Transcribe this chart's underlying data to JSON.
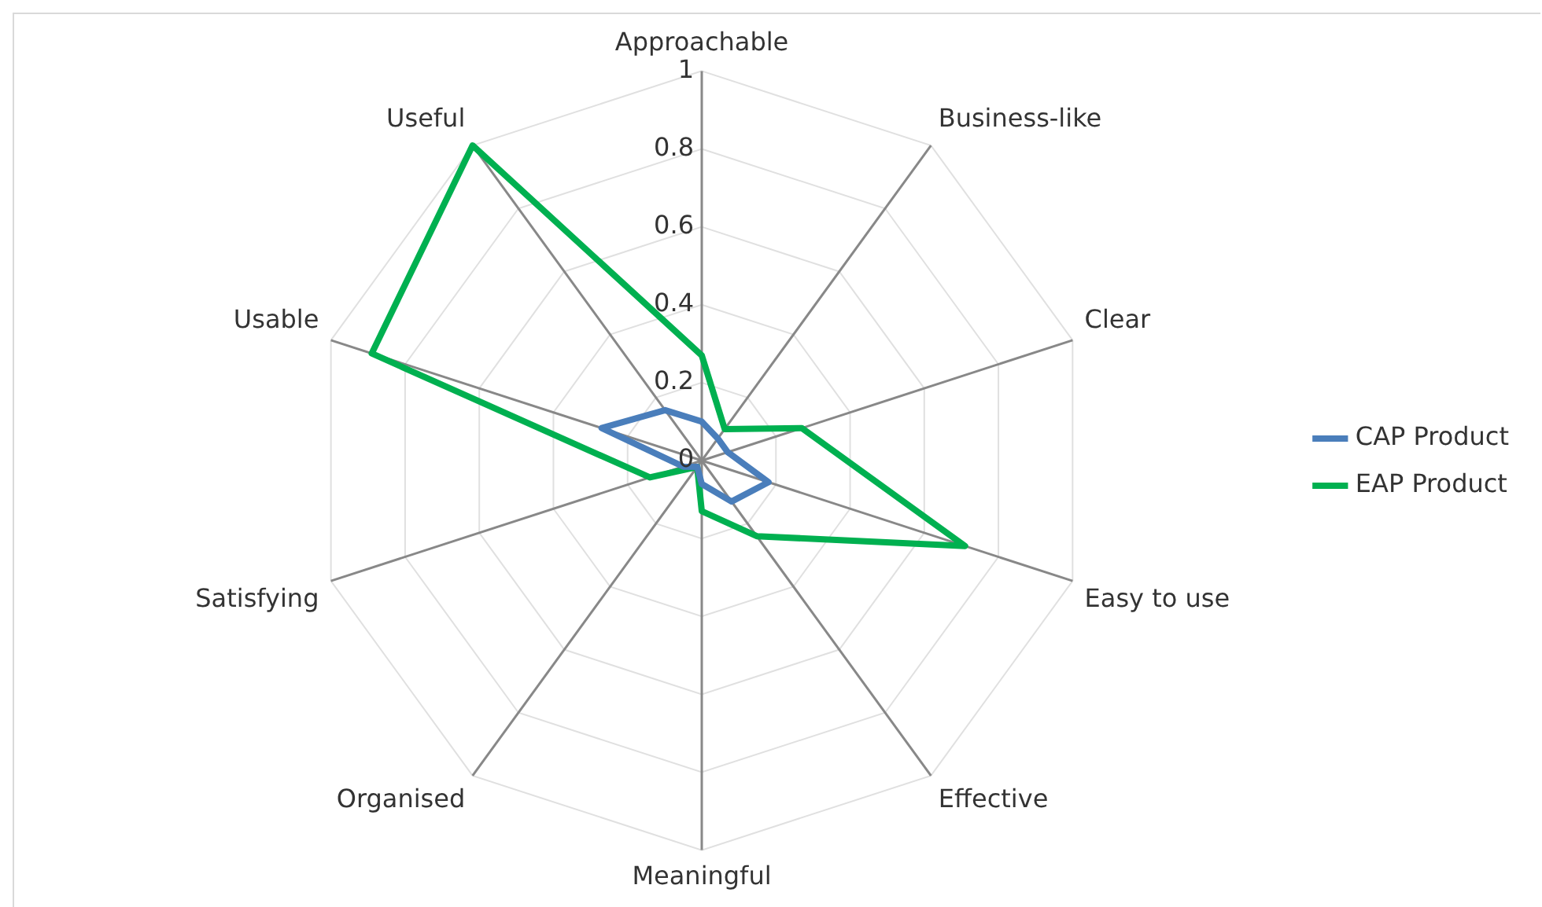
{
  "chart_data": {
    "type": "radar",
    "categories": [
      "Approachable",
      "Business-like",
      "Clear",
      "Easy to use",
      "Effective",
      "Meaningful",
      "Organised",
      "Satisfying",
      "Usable",
      "Useful"
    ],
    "series": [
      {
        "name": "CAP Product",
        "color": "#4a7ebb",
        "values": [
          0.1,
          0.07,
          0.07,
          0.18,
          0.13,
          0.06,
          0.02,
          0.05,
          0.27,
          0.16
        ]
      },
      {
        "name": "EAP Product",
        "color": "#00b050",
        "values": [
          0.27,
          0.1,
          0.27,
          0.71,
          0.24,
          0.13,
          0.02,
          0.14,
          0.89,
          1.0
        ]
      }
    ],
    "ylim": [
      0,
      1
    ],
    "yticks": [
      0,
      0.2,
      0.4,
      0.6,
      0.8,
      1
    ],
    "grid": true,
    "legend": "right",
    "marker": "none"
  }
}
